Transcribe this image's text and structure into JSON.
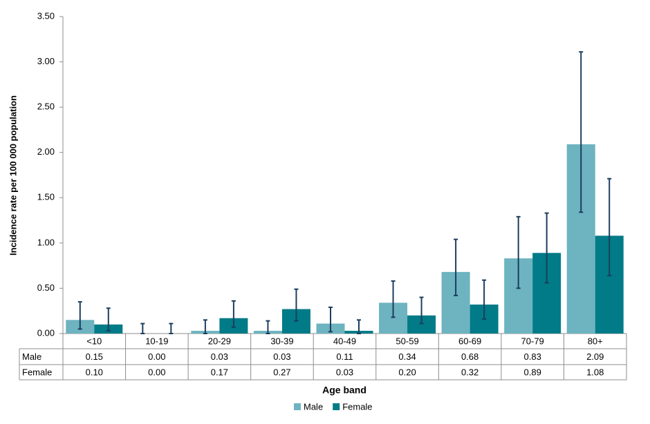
{
  "chart_data": {
    "type": "bar",
    "y_label": "Incidence rate per 100 000 population",
    "x_label": "Age band",
    "categories": [
      "<10",
      "10-19",
      "20-29",
      "30-39",
      "40-49",
      "50-59",
      "60-69",
      "70-79",
      "80+"
    ],
    "series": [
      {
        "name": "Male",
        "color": "#6db3c0",
        "values": [
          0.15,
          0,
          0.03,
          0.03,
          0.11,
          0.34,
          0.68,
          0.83,
          2.09
        ],
        "value_labels": [
          "0.15",
          "0.00",
          "0.03",
          "0.03",
          "0.11",
          "0.34",
          "0.68",
          "0.83",
          "2.09"
        ],
        "lower": [
          0.05,
          0,
          0,
          0,
          0.02,
          0.18,
          0.42,
          0.5,
          1.34
        ],
        "upper": [
          0.35,
          0.11,
          0.15,
          0.14,
          0.29,
          0.58,
          1.04,
          1.29,
          3.11
        ]
      },
      {
        "name": "Female",
        "color": "#007b87",
        "values": [
          0.1,
          0,
          0.17,
          0.27,
          0.03,
          0.2,
          0.32,
          0.89,
          1.08
        ],
        "value_labels": [
          "0.10",
          "0.00",
          "0.17",
          "0.27",
          "0.03",
          "0.20",
          "0.32",
          "0.89",
          "1.08"
        ],
        "lower": [
          0.03,
          0,
          0.07,
          0.14,
          0,
          0.11,
          0.16,
          0.56,
          0.64
        ],
        "upper": [
          0.28,
          0.11,
          0.36,
          0.49,
          0.15,
          0.4,
          0.59,
          1.33,
          1.71
        ]
      }
    ],
    "error_bar_color": "#1b3d5e",
    "ylim": [
      0,
      3.5
    ],
    "yticks": [
      {
        "value": 0,
        "label": "0.00"
      },
      {
        "value": 0.5,
        "label": "0.50"
      },
      {
        "value": 1,
        "label": "1.00"
      },
      {
        "value": 1.5,
        "label": "1.50"
      },
      {
        "value": 2,
        "label": "2.00"
      },
      {
        "value": 2.5,
        "label": "2.50"
      },
      {
        "value": 3,
        "label": "3.00"
      },
      {
        "value": 3.5,
        "label": "3.50"
      }
    ],
    "grid": false,
    "legend": "bottom"
  }
}
